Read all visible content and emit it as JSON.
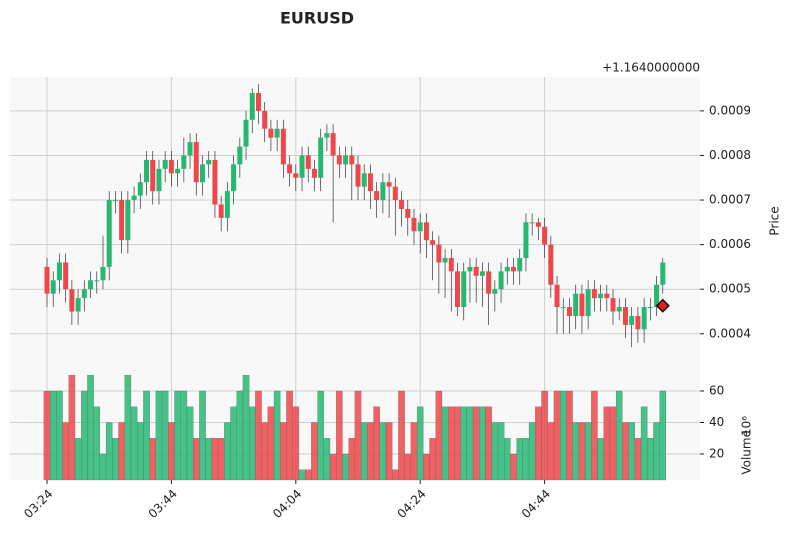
{
  "chart_data": {
    "type": "candlestick",
    "title": "EURUSD",
    "offset_label": "+1.1640000000",
    "ylabel": "Price",
    "volume_label": "Volume",
    "volume_unit": "10⁶",
    "up_color": "#26b873",
    "down_color": "#f0464a",
    "grid": true,
    "categories": [
      "03:24",
      null,
      null,
      null,
      null,
      null,
      null,
      null,
      null,
      null,
      null,
      null,
      null,
      null,
      null,
      null,
      null,
      null,
      null,
      null,
      "03:44",
      null,
      null,
      null,
      null,
      null,
      null,
      null,
      null,
      null,
      null,
      null,
      null,
      null,
      null,
      null,
      null,
      null,
      null,
      null,
      "04:04",
      null,
      null,
      null,
      null,
      null,
      null,
      null,
      null,
      null,
      null,
      null,
      null,
      null,
      null,
      null,
      null,
      null,
      null,
      null,
      "04:24",
      null,
      null,
      null,
      null,
      null,
      null,
      null,
      null,
      null,
      null,
      null,
      null,
      null,
      null,
      null,
      null,
      null,
      null,
      null,
      "04:44",
      null,
      null,
      null,
      null,
      null,
      null,
      null,
      null,
      null,
      null,
      null,
      null,
      null,
      null,
      null,
      null,
      null,
      null,
      null
    ],
    "open": [
      0.00055,
      0.00049,
      0.00052,
      0.00056,
      0.0005,
      0.00045,
      0.00048,
      0.0005,
      0.00052,
      0.00052,
      0.00055,
      0.0007,
      0.0007,
      0.00061,
      0.0007,
      0.00071,
      0.00074,
      0.00079,
      0.00072,
      0.00077,
      0.00079,
      0.00076,
      0.00077,
      0.0008,
      0.00083,
      0.00074,
      0.00078,
      0.00079,
      0.00069,
      0.00066,
      0.00072,
      0.00078,
      0.00082,
      0.00088,
      0.00094,
      0.0009,
      0.00086,
      0.00084,
      0.00086,
      0.00078,
      0.00076,
      0.00075,
      0.0008,
      0.00077,
      0.00075,
      0.00084,
      0.00085,
      0.0008,
      0.00078,
      0.0008,
      0.00078,
      0.00073,
      0.00076,
      0.00072,
      0.0007,
      0.00074,
      0.00073,
      0.0007,
      0.00068,
      0.00066,
      0.00063,
      0.00065,
      0.00061,
      0.0006,
      0.00056,
      0.00057,
      0.00054,
      0.00046,
      0.00054,
      0.00055,
      0.00053,
      0.00054,
      0.00049,
      0.0005,
      0.00054,
      0.00055,
      0.00054,
      0.00057,
      0.00065,
      0.00065,
      0.00064,
      0.0006,
      0.00051,
      0.00046,
      0.00046,
      0.00044,
      0.00049,
      0.00044,
      0.0005,
      0.00048,
      0.00049,
      0.00048,
      0.00045,
      0.00046,
      0.00042,
      0.00044,
      0.00041,
      0.00046,
      0.00046,
      0.00051
    ],
    "high": [
      0.00057,
      0.00054,
      0.00058,
      0.00058,
      0.00052,
      0.0005,
      0.00052,
      0.00054,
      0.00054,
      0.00062,
      0.00072,
      0.00072,
      0.00072,
      0.00072,
      0.00073,
      0.00076,
      0.00081,
      0.00081,
      0.00079,
      0.00081,
      0.00081,
      0.00079,
      0.00084,
      0.00085,
      0.00085,
      0.0008,
      0.00081,
      0.00081,
      0.00071,
      0.00074,
      0.0008,
      0.00084,
      0.0009,
      0.00095,
      0.00096,
      0.00092,
      0.00088,
      0.00088,
      0.00088,
      0.0008,
      0.00078,
      0.00082,
      0.00082,
      0.00079,
      0.00086,
      0.00087,
      0.00087,
      0.00082,
      0.00082,
      0.00082,
      0.0008,
      0.00078,
      0.00078,
      0.00074,
      0.00076,
      0.00076,
      0.00075,
      0.00072,
      0.0007,
      0.00068,
      0.00067,
      0.00067,
      0.00063,
      0.00062,
      0.00059,
      0.00059,
      0.00056,
      0.00056,
      0.00057,
      0.00057,
      0.00056,
      0.00056,
      0.00052,
      0.00056,
      0.00057,
      0.00057,
      0.00059,
      0.00067,
      0.00067,
      0.00066,
      0.00066,
      0.00062,
      0.00053,
      0.00048,
      0.00048,
      0.00051,
      0.00051,
      0.00052,
      0.00052,
      0.00051,
      0.00051,
      0.0005,
      0.00048,
      0.00048,
      0.00046,
      0.00046,
      0.00048,
      0.00048,
      0.00053,
      0.00057
    ],
    "low": [
      0.00046,
      0.00046,
      0.00049,
      0.00047,
      0.00042,
      0.00042,
      0.00045,
      0.00048,
      0.00049,
      0.0005,
      0.00052,
      0.00067,
      0.00058,
      0.00058,
      0.00067,
      0.00068,
      0.00071,
      0.00069,
      0.00069,
      0.00074,
      0.00073,
      0.00073,
      0.00074,
      0.00077,
      0.00071,
      0.00071,
      0.00075,
      0.00066,
      0.00063,
      0.00063,
      0.00069,
      0.00075,
      0.00079,
      0.00085,
      0.00087,
      0.00083,
      0.00081,
      0.00081,
      0.00075,
      0.00073,
      0.00072,
      0.00072,
      0.00074,
      0.00072,
      0.00072,
      0.00081,
      0.00065,
      0.00075,
      0.00075,
      0.0007,
      0.0007,
      0.0007,
      0.00068,
      0.00066,
      0.00067,
      0.00066,
      0.00062,
      0.00064,
      0.00062,
      0.0006,
      0.00058,
      0.00057,
      0.00052,
      0.00049,
      0.00048,
      0.00045,
      0.00044,
      0.00043,
      0.00047,
      0.00047,
      0.00046,
      0.00042,
      0.00045,
      0.00047,
      0.00051,
      0.00051,
      0.00051,
      0.00054,
      0.00062,
      0.00061,
      0.00057,
      0.00048,
      0.0004,
      0.0004,
      0.0004,
      0.00041,
      0.0004,
      0.00041,
      0.00045,
      0.00045,
      0.00045,
      0.00042,
      0.00043,
      0.00039,
      0.00037,
      0.00038,
      0.00038,
      0.00043,
      0.00044,
      0.00049
    ],
    "close": [
      0.00049,
      0.00052,
      0.00056,
      0.0005,
      0.00045,
      0.00048,
      0.0005,
      0.00052,
      0.00052,
      0.00055,
      0.0007,
      0.0007,
      0.00061,
      0.0007,
      0.00071,
      0.00074,
      0.00079,
      0.00072,
      0.00077,
      0.00079,
      0.00076,
      0.00077,
      0.0008,
      0.00083,
      0.00074,
      0.00078,
      0.00079,
      0.00069,
      0.00066,
      0.00072,
      0.00078,
      0.00082,
      0.00088,
      0.00094,
      0.0009,
      0.00086,
      0.00084,
      0.00086,
      0.00078,
      0.00076,
      0.00075,
      0.0008,
      0.00077,
      0.00075,
      0.00084,
      0.00085,
      0.0008,
      0.00078,
      0.0008,
      0.00078,
      0.00073,
      0.00076,
      0.00072,
      0.0007,
      0.00074,
      0.00073,
      0.0007,
      0.00068,
      0.00066,
      0.00063,
      0.00065,
      0.00061,
      0.0006,
      0.00056,
      0.00057,
      0.00054,
      0.00046,
      0.00054,
      0.00055,
      0.00053,
      0.00054,
      0.00049,
      0.0005,
      0.00054,
      0.00055,
      0.00054,
      0.00057,
      0.00065,
      0.00065,
      0.00064,
      0.0006,
      0.00051,
      0.00046,
      0.00046,
      0.00044,
      0.00049,
      0.00044,
      0.0005,
      0.00048,
      0.00049,
      0.00048,
      0.00045,
      0.00046,
      0.00042,
      0.00044,
      0.00041,
      0.00046,
      0.00046,
      0.00051,
      0.00056
    ],
    "volume": [
      60,
      60,
      60,
      40,
      70,
      30,
      60,
      70,
      50,
      20,
      40,
      30,
      40,
      70,
      50,
      40,
      60,
      30,
      60,
      60,
      40,
      60,
      60,
      50,
      30,
      60,
      30,
      30,
      30,
      40,
      50,
      60,
      70,
      50,
      60,
      40,
      50,
      60,
      40,
      60,
      50,
      10,
      10,
      40,
      60,
      30,
      20,
      60,
      20,
      30,
      60,
      40,
      40,
      50,
      40,
      40,
      10,
      60,
      20,
      40,
      50,
      20,
      30,
      60,
      50,
      50,
      50,
      50,
      50,
      50,
      50,
      50,
      40,
      40,
      30,
      20,
      30,
      30,
      40,
      50,
      60,
      40,
      60,
      60,
      60,
      40,
      40,
      40,
      60,
      30,
      50,
      50,
      60,
      40,
      40,
      30,
      50,
      30,
      40,
      60
    ],
    "marker": 0.000463,
    "marker_color": "#e02020",
    "ylim": [
      0.00033,
      0.000976
    ],
    "yticks": [
      0.0004,
      0.0005,
      0.0006,
      0.0007,
      0.0008,
      0.0009
    ],
    "vlim": [
      3.5,
      76.5
    ],
    "vticks": [
      20,
      40,
      60
    ]
  }
}
